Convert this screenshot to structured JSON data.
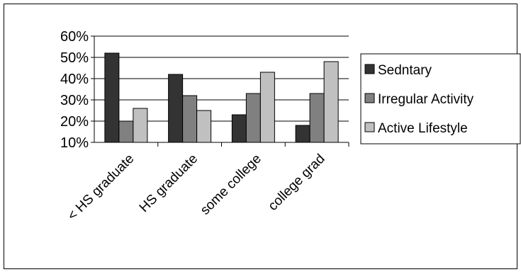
{
  "chart_data": {
    "type": "bar",
    "title": "",
    "xlabel": "",
    "ylabel": "",
    "categories": [
      "< HS graduate",
      "HS graduate",
      "some college",
      "college grad"
    ],
    "series": [
      {
        "name": "Sedntary",
        "values": [
          52,
          42,
          23,
          18
        ],
        "color": "#333333"
      },
      {
        "name": "Irregular Activity",
        "values": [
          20,
          32,
          33,
          33
        ],
        "color": "#808080"
      },
      {
        "name": "Active Lifestyle",
        "values": [
          26,
          25,
          43,
          48
        ],
        "color": "#c0c0c0"
      }
    ],
    "ylim": [
      10,
      60
    ],
    "yticks": [
      10,
      20,
      30,
      40,
      50,
      60
    ],
    "ytick_labels": [
      "10%",
      "20%",
      "30%",
      "40%",
      "50%",
      "60%"
    ],
    "grid": true,
    "legend": "right"
  }
}
